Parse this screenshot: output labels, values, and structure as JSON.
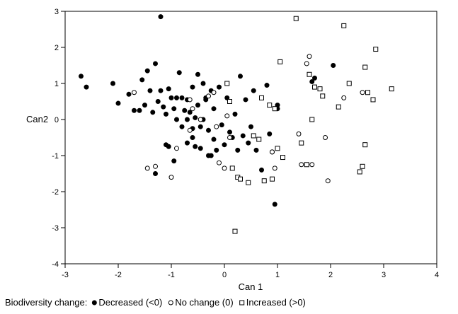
{
  "chart_data": {
    "type": "scatter",
    "title": "",
    "xlabel": "Can 1",
    "ylabel": "Can2",
    "xlim": [
      -3,
      4
    ],
    "ylim": [
      -4,
      3
    ],
    "xticks": [
      -3,
      -2,
      -1,
      0,
      1,
      2,
      3,
      4
    ],
    "yticks": [
      -4,
      -3,
      -2,
      -1,
      0,
      1,
      2,
      3
    ],
    "grid": false,
    "legend_position": "bottom",
    "legend_title": "Biodiversity change:",
    "series": [
      {
        "name": "Decreased (<0)",
        "marker": "filled-circle",
        "points": [
          [
            -2.7,
            1.2
          ],
          [
            -2.6,
            0.9
          ],
          [
            -2.1,
            1.0
          ],
          [
            -2.0,
            0.45
          ],
          [
            -1.8,
            0.7
          ],
          [
            -1.7,
            0.25
          ],
          [
            -1.6,
            0.25
          ],
          [
            -1.55,
            1.1
          ],
          [
            -1.5,
            0.4
          ],
          [
            -1.45,
            1.35
          ],
          [
            -1.4,
            0.8
          ],
          [
            -1.35,
            0.2
          ],
          [
            -1.3,
            1.55
          ],
          [
            -1.25,
            0.5
          ],
          [
            -1.2,
            2.85
          ],
          [
            -1.2,
            0.8
          ],
          [
            -1.15,
            0.35
          ],
          [
            -1.1,
            0.15
          ],
          [
            -1.05,
            0.85
          ],
          [
            -1.0,
            0.6
          ],
          [
            -0.95,
            0.3
          ],
          [
            -0.9,
            0.0
          ],
          [
            -0.85,
            1.3
          ],
          [
            -0.8,
            0.6
          ],
          [
            -0.8,
            -0.2
          ],
          [
            -0.75,
            0.25
          ],
          [
            -0.7,
            0.55
          ],
          [
            -0.7,
            -0.65
          ],
          [
            -0.65,
            0.2
          ],
          [
            -0.6,
            0.9
          ],
          [
            -0.6,
            -0.5
          ],
          [
            -0.55,
            0.05
          ],
          [
            -0.55,
            -0.75
          ],
          [
            -0.5,
            1.25
          ],
          [
            -0.5,
            0.4
          ],
          [
            -0.45,
            -0.2
          ],
          [
            -0.45,
            -0.8
          ],
          [
            -0.4,
            1.0
          ],
          [
            -0.4,
            0.0
          ],
          [
            -0.35,
            0.55
          ],
          [
            -0.3,
            -0.3
          ],
          [
            -0.3,
            -1.0
          ],
          [
            -0.25,
            0.8
          ],
          [
            -0.2,
            0.3
          ],
          [
            -0.2,
            -0.55
          ],
          [
            -0.15,
            -0.85
          ],
          [
            -0.1,
            0.9
          ],
          [
            -0.05,
            -0.15
          ],
          [
            0.0,
            -0.7
          ],
          [
            0.05,
            0.6
          ],
          [
            0.1,
            -0.35
          ],
          [
            0.2,
            0.15
          ],
          [
            0.3,
            1.2
          ],
          [
            0.35,
            -0.45
          ],
          [
            0.4,
            0.55
          ],
          [
            0.45,
            -0.65
          ],
          [
            0.5,
            -0.2
          ],
          [
            0.55,
            0.8
          ],
          [
            0.6,
            -0.85
          ],
          [
            0.7,
            -1.4
          ],
          [
            0.8,
            0.95
          ],
          [
            0.85,
            -0.4
          ],
          [
            0.9,
            -0.9
          ],
          [
            0.95,
            -2.35
          ],
          [
            1.0,
            0.3
          ],
          [
            1.0,
            0.4
          ],
          [
            -1.3,
            -1.5
          ],
          [
            -1.1,
            -0.7
          ],
          [
            -0.95,
            -1.15
          ],
          [
            -0.25,
            -1.0
          ],
          [
            1.7,
            1.15
          ],
          [
            1.65,
            1.05
          ],
          [
            2.05,
            1.5
          ],
          [
            -0.7,
            0.0
          ],
          [
            -0.6,
            -0.25
          ],
          [
            -0.9,
            0.6
          ],
          [
            -1.05,
            -0.75
          ],
          [
            0.25,
            -0.85
          ],
          [
            0.15,
            -0.5
          ],
          [
            -0.35,
            0.6
          ]
        ]
      },
      {
        "name": "No change (0)",
        "marker": "open-circle",
        "points": [
          [
            -1.7,
            0.75
          ],
          [
            -1.45,
            -1.35
          ],
          [
            -1.3,
            -1.3
          ],
          [
            -1.0,
            -1.6
          ],
          [
            -0.9,
            -0.8
          ],
          [
            -0.65,
            0.55
          ],
          [
            -0.6,
            0.3
          ],
          [
            -0.45,
            0.0
          ],
          [
            -0.3,
            0.65
          ],
          [
            -0.2,
            0.75
          ],
          [
            -0.15,
            -0.2
          ],
          [
            -0.1,
            -1.2
          ],
          [
            0.0,
            -1.35
          ],
          [
            0.05,
            0.1
          ],
          [
            0.1,
            -0.5
          ],
          [
            0.9,
            -0.9
          ],
          [
            0.95,
            -1.35
          ],
          [
            1.4,
            -0.4
          ],
          [
            1.45,
            -1.25
          ],
          [
            1.55,
            1.55
          ],
          [
            1.6,
            1.75
          ],
          [
            1.65,
            -1.25
          ],
          [
            1.9,
            -0.5
          ],
          [
            1.95,
            -1.7
          ],
          [
            2.25,
            0.6
          ],
          [
            2.6,
            0.75
          ],
          [
            -0.65,
            -0.3
          ]
        ]
      },
      {
        "name": "Increased (>0)",
        "marker": "open-square",
        "points": [
          [
            0.05,
            1.0
          ],
          [
            0.1,
            0.5
          ],
          [
            0.15,
            -1.35
          ],
          [
            0.25,
            -1.6
          ],
          [
            0.3,
            -1.65
          ],
          [
            0.45,
            -1.75
          ],
          [
            0.55,
            -0.45
          ],
          [
            0.65,
            -0.55
          ],
          [
            0.75,
            -1.7
          ],
          [
            0.85,
            0.4
          ],
          [
            0.9,
            -1.65
          ],
          [
            0.95,
            0.3
          ],
          [
            1.0,
            -0.8
          ],
          [
            1.05,
            1.6
          ],
          [
            1.1,
            -1.05
          ],
          [
            1.35,
            2.8
          ],
          [
            1.45,
            -0.65
          ],
          [
            1.55,
            -1.25
          ],
          [
            1.65,
            0.0
          ],
          [
            1.8,
            0.85
          ],
          [
            1.85,
            0.65
          ],
          [
            2.15,
            0.35
          ],
          [
            2.25,
            2.6
          ],
          [
            2.35,
            1.0
          ],
          [
            2.55,
            -1.45
          ],
          [
            2.6,
            -1.3
          ],
          [
            2.65,
            -0.7
          ],
          [
            2.65,
            1.45
          ],
          [
            2.7,
            0.75
          ],
          [
            2.8,
            0.55
          ],
          [
            2.85,
            1.95
          ],
          [
            3.15,
            0.85
          ],
          [
            0.2,
            -3.1
          ],
          [
            1.7,
            0.9
          ],
          [
            0.7,
            0.6
          ],
          [
            1.6,
            1.25
          ]
        ]
      }
    ]
  }
}
